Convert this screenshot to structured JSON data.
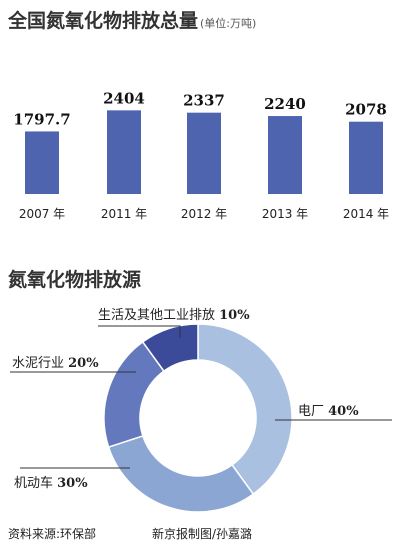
{
  "chart_data": [
    {
      "type": "bar",
      "title": "全国氮氧化物排放总量",
      "unit": "(单位:万吨)",
      "categories": [
        "2007 年",
        "2011 年",
        "2012 年",
        "2013 年",
        "2014 年"
      ],
      "values": [
        1797.7,
        2404,
        2337,
        2240,
        2078
      ],
      "value_labels": [
        "1797.7",
        "2404",
        "2337",
        "2240",
        "2078"
      ],
      "bar_color": "#4f64ae"
    },
    {
      "type": "pie",
      "style": "donut",
      "title": "氮氧化物排放源",
      "slices": [
        {
          "label": "电厂",
          "pct_label": "40%",
          "value": 40,
          "color": "#a9c0e0"
        },
        {
          "label": "机动车",
          "pct_label": "30%",
          "value": 30,
          "color": "#8ca6d4"
        },
        {
          "label": "水泥行业",
          "pct_label": "20%",
          "value": 20,
          "color": "#6479bd"
        },
        {
          "label": "生活及其他工业排放",
          "pct_label": "10%",
          "value": 10,
          "color": "#3b4b9a"
        }
      ]
    }
  ],
  "footer": {
    "source": "资料来源:环保部",
    "credit": "新京报制图/孙嘉潞"
  }
}
